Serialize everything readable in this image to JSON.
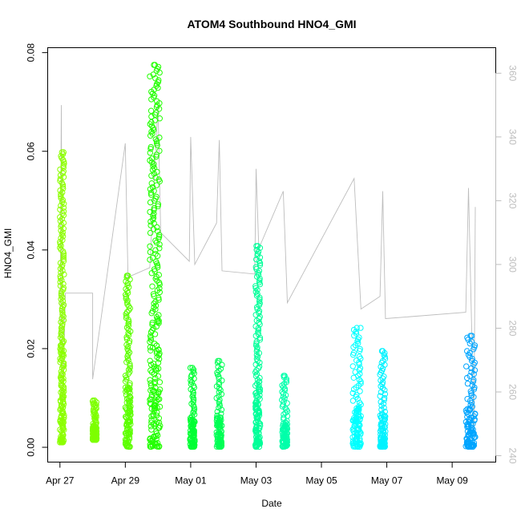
{
  "chart_data": {
    "type": "scatter",
    "title": "ATOM4 Southbound HNO4_GMI",
    "xlabel": "Date",
    "ylabel": "HNO4_GMI",
    "x_range": [
      "2018-04-26T15:00",
      "2018-05-10T08:00"
    ],
    "ylim": [
      -0.003,
      0.081
    ],
    "y2lim": [
      238,
      368
    ],
    "y_ticks": [
      0.0,
      0.02,
      0.04,
      0.06,
      0.08
    ],
    "y_tick_labels": [
      "0.00",
      "0.02",
      "0.04",
      "0.06",
      "0.08"
    ],
    "y2_ticks": [
      240,
      260,
      280,
      300,
      320,
      340,
      360
    ],
    "y2_tick_labels": [
      "240",
      "260",
      "280",
      "300",
      "320",
      "340",
      "360"
    ],
    "x_ticks": [
      "2018-04-27",
      "2018-04-29",
      "2018-05-01",
      "2018-05-03",
      "2018-05-05",
      "2018-05-07",
      "2018-05-09"
    ],
    "x_tick_labels": [
      "Apr 27",
      "Apr 29",
      "May 01",
      "May 03",
      "May 05",
      "May 07",
      "May 09"
    ],
    "grid": false,
    "series": [
      {
        "role": "HNO4_GMI (points colored by time)",
        "segments": [
          {
            "start": "2018-04-27T00:00",
            "end": "2018-04-27T03:00",
            "ymin": 0.001,
            "ymax": 0.0598,
            "color": "#8cff00"
          },
          {
            "start": "2018-04-28T00:00",
            "end": "2018-04-28T03:00",
            "ymin": 0.0015,
            "ymax": 0.0095,
            "color": "#7dff00"
          },
          {
            "start": "2018-04-29T00:00",
            "end": "2018-04-29T04:00",
            "ymin": 0.0001,
            "ymax": 0.0348,
            "color": "#5cff00"
          },
          {
            "start": "2018-04-29T18:00",
            "end": "2018-04-30T01:30",
            "ymin": 0.0001,
            "ymax": 0.0775,
            "color": "#22ff00"
          },
          {
            "start": "2018-04-30T23:30",
            "end": "2018-05-01T03:00",
            "ymin": 0.0001,
            "ymax": 0.0161,
            "color": "#00ff33"
          },
          {
            "start": "2018-05-01T19:00",
            "end": "2018-05-01T23:00",
            "ymin": 0.0001,
            "ymax": 0.0175,
            "color": "#00ff55"
          },
          {
            "start": "2018-05-02T23:30",
            "end": "2018-05-03T03:00",
            "ymin": 0.0001,
            "ymax": 0.0408,
            "color": "#00ff99"
          },
          {
            "start": "2018-05-03T19:00",
            "end": "2018-05-03T23:00",
            "ymin": 0.0001,
            "ymax": 0.0145,
            "color": "#00ffaa"
          },
          {
            "start": "2018-05-05T23:00",
            "end": "2018-05-06T05:00",
            "ymin": 0.0001,
            "ymax": 0.0242,
            "color": "#00ffff"
          },
          {
            "start": "2018-05-06T19:00",
            "end": "2018-05-06T23:00",
            "ymin": 0.0001,
            "ymax": 0.0195,
            "color": "#00f2ff"
          },
          {
            "start": "2018-05-09T10:00",
            "end": "2018-05-09T17:00",
            "ymin": 0.0001,
            "ymax": 0.0226,
            "color": "#00a5ff"
          }
        ]
      },
      {
        "role": "secondary trace (gray line, right axis)",
        "color": "#bdbdbd",
        "points": [
          [
            "2018-04-27T00:00",
            274
          ],
          [
            "2018-04-27T01:00",
            350
          ],
          [
            "2018-04-27T02:00",
            254
          ],
          [
            "2018-04-27T04:00",
            291
          ],
          [
            "2018-04-28T00:00",
            291
          ],
          [
            "2018-04-28T00:00",
            264
          ],
          [
            "2018-04-29T00:00",
            338
          ],
          [
            "2018-04-29T02:00",
            296
          ],
          [
            "2018-04-29T18:00",
            299
          ],
          [
            "2018-04-30T00:00",
            350
          ],
          [
            "2018-04-30T02:00",
            310
          ],
          [
            "2018-04-30T23:00",
            301
          ],
          [
            "2018-05-01T00:00",
            340
          ],
          [
            "2018-05-01T03:00",
            300
          ],
          [
            "2018-05-01T19:00",
            313
          ],
          [
            "2018-05-01T21:00",
            339
          ],
          [
            "2018-05-01T23:00",
            298
          ],
          [
            "2018-05-02T23:00",
            297
          ],
          [
            "2018-05-03T00:00",
            330
          ],
          [
            "2018-05-03T02:00",
            305
          ],
          [
            "2018-05-03T20:00",
            323
          ],
          [
            "2018-05-03T23:00",
            288
          ],
          [
            "2018-05-06T00:00",
            327
          ],
          [
            "2018-05-06T05:00",
            286
          ],
          [
            "2018-05-06T19:00",
            290
          ],
          [
            "2018-05-06T21:00",
            323
          ],
          [
            "2018-05-06T23:00",
            283
          ],
          [
            "2018-05-09T10:00",
            285
          ],
          [
            "2018-05-09T12:00",
            324
          ],
          [
            "2018-05-09T16:00",
            248
          ],
          [
            "2018-05-09T17:00",
            318
          ]
        ]
      }
    ]
  }
}
